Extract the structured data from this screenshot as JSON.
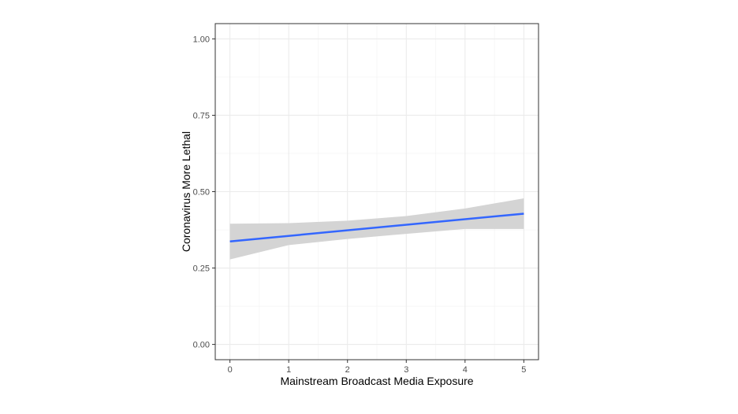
{
  "chart_data": {
    "type": "line",
    "xlabel": "Mainstream Broadcast Media Exposure",
    "ylabel": "Coronavirus More Lethal",
    "xlim": [
      -0.25,
      5.25
    ],
    "ylim": [
      -0.05,
      1.05
    ],
    "x_ticks": [
      0,
      1,
      2,
      3,
      4,
      5
    ],
    "x_tick_labels": [
      "0",
      "1",
      "2",
      "3",
      "4",
      "5"
    ],
    "y_ticks": [
      0,
      0.25,
      0.5,
      0.75,
      1.0
    ],
    "y_tick_labels": [
      "0.00",
      "0.25",
      "0.50",
      "0.75",
      "1.00"
    ],
    "grid": true,
    "series": [
      {
        "x": [
          0,
          5
        ],
        "y": [
          0.337,
          0.428
        ],
        "color": "#3366ff",
        "ci_x": [
          0,
          1,
          2,
          3,
          4,
          5
        ],
        "ci_lower": [
          0.278,
          0.325,
          0.345,
          0.362,
          0.378,
          0.378
        ],
        "ci_upper": [
          0.395,
          0.397,
          0.405,
          0.42,
          0.445,
          0.478
        ],
        "ci_color": "#d4d4d4"
      }
    ]
  }
}
